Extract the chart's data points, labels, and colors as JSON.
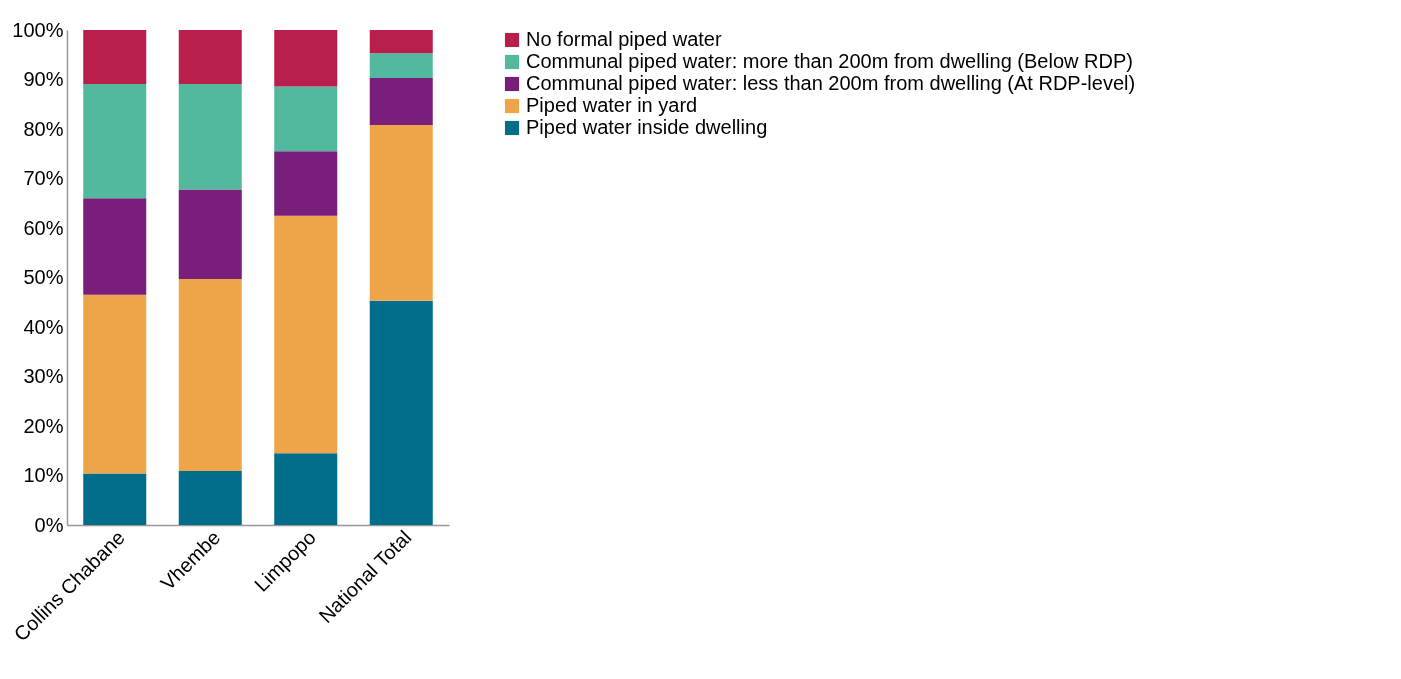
{
  "chart_data": {
    "type": "bar",
    "stacked": true,
    "categories": [
      "Collins Chabane",
      "Vhembe",
      "Limpopo",
      "National Total"
    ],
    "series": [
      {
        "name": "Piped water inside dwelling",
        "color": "#006d8a",
        "values": [
          10.4,
          10.9,
          14.5,
          45.3
        ]
      },
      {
        "name": "Piped water in yard",
        "color": "#eea54a",
        "values": [
          36.1,
          38.8,
          48.0,
          35.5
        ]
      },
      {
        "name": "Communal piped water: less than 200m from dwelling (At RDP-level)",
        "color": "#7a1e7c",
        "values": [
          19.5,
          18.1,
          13.0,
          9.5
        ]
      },
      {
        "name": "Communal piped water: more than 200m from dwelling (Below RDP)",
        "color": "#53b99e",
        "values": [
          23.1,
          21.3,
          13.1,
          5.0
        ]
      },
      {
        "name": "No formal piped water",
        "color": "#b81f4c",
        "values": [
          10.9,
          10.9,
          11.4,
          4.7
        ]
      }
    ],
    "ylim": [
      0,
      100
    ],
    "yticks": [
      {
        "value": 0,
        "label": "0%"
      },
      {
        "value": 10,
        "label": "10%"
      },
      {
        "value": 20,
        "label": "20%"
      },
      {
        "value": 30,
        "label": "30%"
      },
      {
        "value": 40,
        "label": "40%"
      },
      {
        "value": 50,
        "label": "50%"
      },
      {
        "value": 60,
        "label": "60%"
      },
      {
        "value": 70,
        "label": "70%"
      },
      {
        "value": 80,
        "label": "80%"
      },
      {
        "value": 90,
        "label": "90%"
      },
      {
        "value": 100,
        "label": "100%"
      }
    ],
    "grid": false,
    "legend": "top right"
  }
}
